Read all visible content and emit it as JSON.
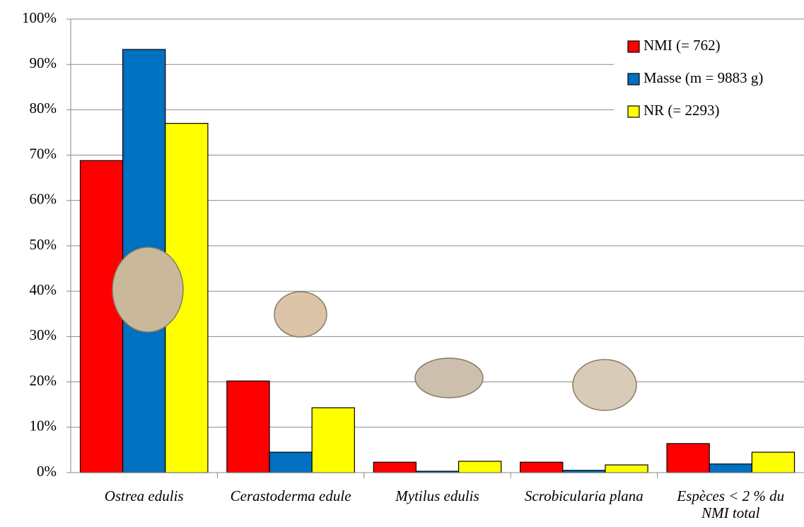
{
  "chart_data": {
    "type": "bar",
    "categories": [
      "Ostrea edulis",
      "Cerastoderma edule",
      "Mytilus edulis",
      "Scrobicularia plana",
      "Espèces < 2 % du NMI total"
    ],
    "series": [
      {
        "name": "NMI (= 762)",
        "color": "#ff0000",
        "values": [
          68.8,
          20.2,
          2.3,
          2.3,
          6.4
        ]
      },
      {
        "name": "Masse (m = 9883 g)",
        "color": "#0070c0",
        "values": [
          93.3,
          4.5,
          0.3,
          0.5,
          1.9
        ]
      },
      {
        "name": "NR (= 2293)",
        "color": "#ffff00",
        "values": [
          77.0,
          14.3,
          2.5,
          1.7,
          4.5
        ]
      }
    ],
    "ylim": [
      0,
      100
    ],
    "yticks": [
      {
        "value": 0,
        "label": "0%"
      },
      {
        "value": 10,
        "label": "10%"
      },
      {
        "value": 20,
        "label": "20%"
      },
      {
        "value": 30,
        "label": "30%"
      },
      {
        "value": 40,
        "label": "40%"
      },
      {
        "value": 50,
        "label": "50%"
      },
      {
        "value": 60,
        "label": "60%"
      },
      {
        "value": 70,
        "label": "70%"
      },
      {
        "value": 80,
        "label": "80%"
      },
      {
        "value": 90,
        "label": "90%"
      },
      {
        "value": 100,
        "label": "100%"
      }
    ],
    "grid": true,
    "legend": "upper right"
  }
}
